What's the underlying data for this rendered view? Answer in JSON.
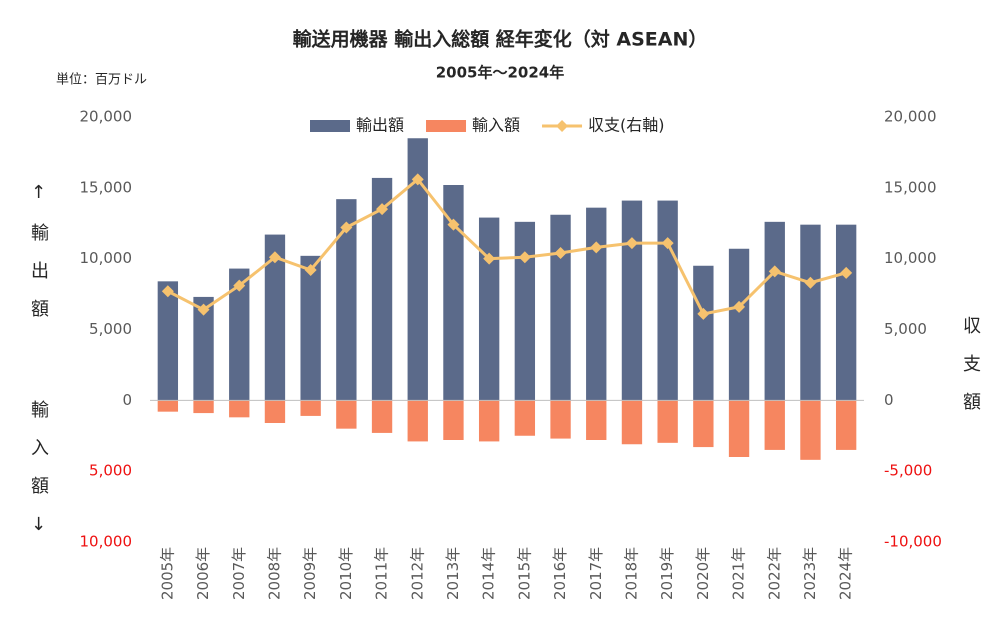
{
  "chart_data": {
    "type": "bar",
    "title": "輸送用機器 輸出入総額 経年変化（対 ASEAN）",
    "subtitle": "2005年～2024年",
    "unit_label": "単位：百万ドル",
    "y_label_upper": "↑輸出額",
    "y_label_lower": "輸入額↓",
    "y2_label": "収支額",
    "categories": [
      "2005年",
      "2006年",
      "2007年",
      "2008年",
      "2009年",
      "2010年",
      "2011年",
      "2012年",
      "2013年",
      "2014年",
      "2015年",
      "2016年",
      "2017年",
      "2018年",
      "2019年",
      "2020年",
      "2021年",
      "2022年",
      "2023年",
      "2024年"
    ],
    "series": [
      {
        "name": "輸出額",
        "color": "#5b6a8a",
        "type": "bar",
        "values": [
          8400,
          7300,
          9300,
          11700,
          10200,
          14200,
          15700,
          18500,
          15200,
          12900,
          12600,
          13100,
          13600,
          14100,
          14100,
          9500,
          10700,
          12600,
          12400,
          12400
        ]
      },
      {
        "name": "輸入額",
        "color": "#f68660",
        "type": "bar",
        "values": [
          -800,
          -900,
          -1200,
          -1600,
          -1100,
          -2000,
          -2300,
          -2900,
          -2800,
          -2900,
          -2500,
          -2700,
          -2800,
          -3100,
          -3000,
          -3300,
          -4000,
          -3500,
          -4200,
          -3500
        ]
      },
      {
        "name": "収支(右軸)",
        "color": "#f6c26e",
        "type": "line",
        "axis": "y2",
        "values": [
          7700,
          6400,
          8100,
          10100,
          9200,
          12200,
          13500,
          15600,
          12400,
          10000,
          10100,
          10400,
          10800,
          11100,
          11100,
          6100,
          6600,
          9100,
          8300,
          9000
        ]
      }
    ],
    "ylim": [
      -10000,
      20000
    ],
    "yticks": [
      {
        "value": 20000,
        "label": "20,000"
      },
      {
        "value": 15000,
        "label": "15,000"
      },
      {
        "value": 10000,
        "label": "10,000"
      },
      {
        "value": 5000,
        "label": "5,000"
      },
      0,
      {
        "value": -5000,
        "label": "5,000"
      },
      {
        "value": -10000,
        "label": "10,000"
      }
    ],
    "y2lim": [
      -10000,
      20000
    ],
    "y2ticks": [
      {
        "value": 20000,
        "label": "20,000"
      },
      {
        "value": 15000,
        "label": "15,000"
      },
      {
        "value": 10000,
        "label": "10,000"
      },
      {
        "value": 5000,
        "label": "5,000"
      },
      0,
      {
        "value": -5000,
        "label": "-5,000"
      },
      {
        "value": -10000,
        "label": "-10,000"
      }
    ],
    "negative_label_color": "#ee1111",
    "legend": "top"
  }
}
